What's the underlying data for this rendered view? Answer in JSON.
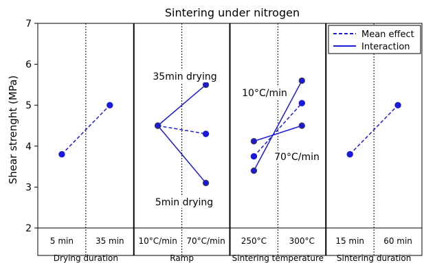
{
  "chart_data": {
    "type": "line",
    "title": "Sintering under nitrogen",
    "ylabel": "Shear strenght (MPa)",
    "ylim": [
      2,
      7
    ],
    "yticks": [
      2,
      3,
      4,
      5,
      6,
      7
    ],
    "grid": false,
    "legend_position": "top-right",
    "colors": {
      "series": "#1a1adb",
      "marker_edge": "#444444",
      "axis": "#000000"
    },
    "legend": [
      {
        "label": "Mean effect",
        "style": "dashed"
      },
      {
        "label": "Interaction",
        "style": "solid"
      }
    ],
    "panels": [
      {
        "label": "Drying duration",
        "categories": [
          "5 min",
          "35 min"
        ],
        "series": [
          {
            "style": "dashed",
            "values": [
              3.8,
              5.0
            ]
          }
        ]
      },
      {
        "label": "Ramp",
        "categories": [
          "10°C/min",
          "70°C/min"
        ],
        "series": [
          {
            "style": "dashed",
            "values": [
              4.5,
              4.3
            ]
          },
          {
            "name": "35min drying",
            "style": "solid",
            "values": [
              4.5,
              5.5
            ]
          },
          {
            "name": "5min drying",
            "style": "solid",
            "values": [
              4.5,
              3.1
            ]
          }
        ]
      },
      {
        "label": "Sintering temperature",
        "categories": [
          "250°C",
          "300°C"
        ],
        "series": [
          {
            "style": "dashed",
            "values": [
              3.75,
              5.05
            ]
          },
          {
            "name": "10°C/min",
            "style": "solid",
            "values": [
              3.4,
              5.6
            ]
          },
          {
            "name": "70°C/min",
            "style": "solid",
            "values": [
              4.12,
              4.5
            ]
          }
        ]
      },
      {
        "label": "Sintering duration",
        "categories": [
          "15 min",
          "60 min"
        ],
        "series": [
          {
            "style": "dashed",
            "values": [
              3.8,
              5.0
            ]
          }
        ]
      }
    ],
    "annotations": [
      "35min drying",
      "5min drying",
      "10°C/min",
      "70°C/min"
    ]
  }
}
